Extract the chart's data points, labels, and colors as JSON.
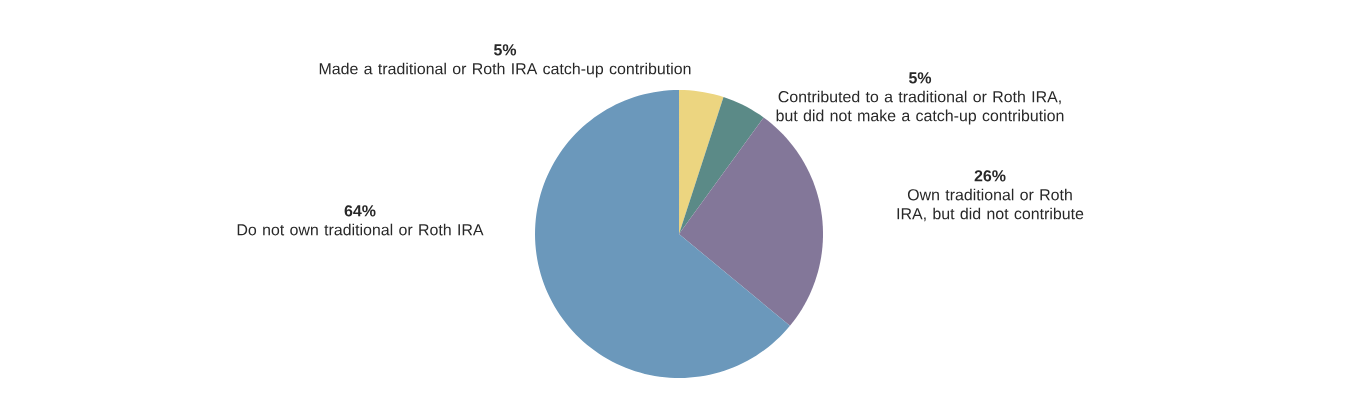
{
  "chart_data": {
    "type": "pie",
    "categories": [
      "Made a traditional or Roth IRA catch-up contribution",
      "Contributed to a traditional or Roth IRA, but did not make a catch-up contribution",
      "Own traditional or Roth IRA, but did not contribute",
      "Do not own traditional or Roth IRA"
    ],
    "values": [
      5,
      5,
      26,
      64
    ],
    "value_labels": [
      "5%",
      "5%",
      "26%",
      "64%"
    ],
    "colors": [
      "#ecd580",
      "#5b8a87",
      "#837799",
      "#6b98bb"
    ]
  }
}
